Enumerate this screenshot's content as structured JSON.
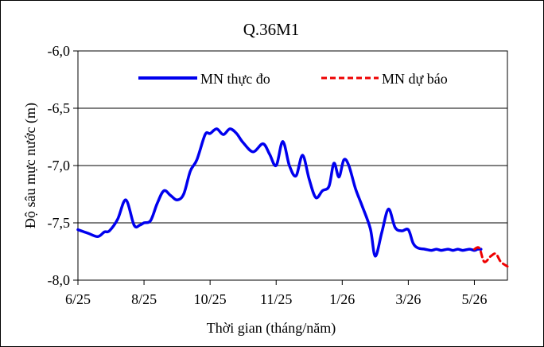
{
  "chart_data": {
    "type": "line",
    "title": "Q.36M1",
    "xlabel": "Thời gian (tháng/năm)",
    "ylabel": "Độ sâu mực nước (m)",
    "ylim": [
      -8.0,
      -6.0
    ],
    "xlim": [
      0,
      13
    ],
    "yticks": [
      "-6,0",
      "-6,5",
      "-7,0",
      "-7,5",
      "-8,0"
    ],
    "xticks": [
      "6/25",
      "8/25",
      "10/25",
      "11/25",
      "1/26",
      "3/26",
      "5/26"
    ],
    "grid": "horizontal",
    "legend_position": "top-right",
    "colors": {
      "observed": "#0000ee",
      "forecast": "#ee0000"
    },
    "series": [
      {
        "name": "MN thực đo",
        "style": "solid",
        "x": [
          0,
          0.3,
          0.6,
          0.8,
          0.95,
          1.2,
          1.45,
          1.7,
          1.87,
          2.0,
          2.2,
          2.4,
          2.6,
          2.8,
          3.0,
          3.2,
          3.4,
          3.6,
          3.85,
          4.0,
          4.2,
          4.4,
          4.6,
          4.8,
          5.0,
          5.3,
          5.6,
          5.8,
          6.0,
          6.2,
          6.4,
          6.6,
          6.8,
          7.0,
          7.2,
          7.4,
          7.6,
          7.75,
          7.9,
          8.05,
          8.2,
          8.4,
          8.6,
          8.85,
          9.0,
          9.2,
          9.4,
          9.6,
          9.8,
          10.0,
          10.15,
          10.3,
          10.5,
          10.7,
          10.85,
          11.0,
          11.2,
          11.35,
          11.5,
          11.65,
          11.85,
          12.0,
          12.1,
          12.2
        ],
        "y": [
          -7.56,
          -7.59,
          -7.62,
          -7.58,
          -7.57,
          -7.47,
          -7.3,
          -7.52,
          -7.52,
          -7.5,
          -7.48,
          -7.33,
          -7.22,
          -7.26,
          -7.3,
          -7.25,
          -7.05,
          -6.95,
          -6.73,
          -6.72,
          -6.68,
          -6.73,
          -6.68,
          -6.72,
          -6.8,
          -6.88,
          -6.81,
          -6.9,
          -7.0,
          -6.79,
          -7.0,
          -7.09,
          -6.91,
          -7.12,
          -7.28,
          -7.22,
          -7.18,
          -6.98,
          -7.1,
          -6.95,
          -7.0,
          -7.2,
          -7.35,
          -7.55,
          -7.79,
          -7.58,
          -7.38,
          -7.54,
          -7.57,
          -7.56,
          -7.68,
          -7.72,
          -7.73,
          -7.74,
          -7.73,
          -7.74,
          -7.73,
          -7.74,
          -7.73,
          -7.74,
          -7.73,
          -7.74,
          -7.73,
          -7.73
        ],
        "annotation": "observed"
      },
      {
        "name": "MN dự báo",
        "style": "dashed",
        "x": [
          12.0,
          12.15,
          12.3,
          12.5,
          12.65,
          12.8,
          13.0
        ],
        "y": [
          -7.73,
          -7.72,
          -7.84,
          -7.79,
          -7.77,
          -7.84,
          -7.88
        ],
        "annotation": "forecast"
      }
    ]
  }
}
